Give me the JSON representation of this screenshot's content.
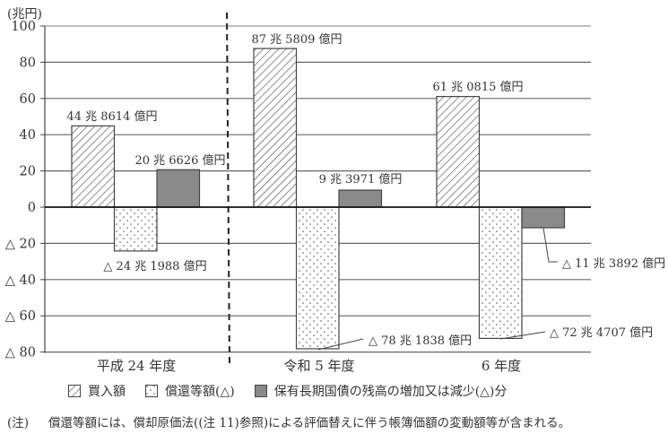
{
  "chart_data": {
    "type": "bar",
    "title": "",
    "ylabel": "(兆円)",
    "xlabel": "",
    "ylim": [
      -80,
      100
    ],
    "yticks": [
      100,
      80,
      60,
      40,
      20,
      0,
      -20,
      -40,
      -60,
      -80
    ],
    "ytick_labels": [
      "100",
      "80",
      "60",
      "40",
      "20",
      "0",
      "△ 20",
      "△ 40",
      "△ 60",
      "△ 80"
    ],
    "grid": true,
    "legend_position": "bottom",
    "categories": [
      "平成 24 年度",
      "令和 5 年度",
      "6 年度"
    ],
    "divider_after_category": 0,
    "series": [
      {
        "name": "買入額",
        "pattern": "hatched",
        "values": [
          44.8614,
          87.5809,
          61.0815
        ],
        "labels": [
          "44 兆 8614 億円",
          "87 兆 5809 億円",
          "61 兆 0815 億円"
        ]
      },
      {
        "name": "償還等額(△)",
        "pattern": "dotted",
        "values": [
          -24.1988,
          -78.1838,
          -72.4707
        ],
        "labels": [
          "△ 24 兆 1988 億円",
          "△ 78 兆 1838 億円",
          "△ 72 兆 4707 億円"
        ]
      },
      {
        "name": "保有長期国債の残高の増加又は減少(△)分",
        "pattern": "solid-gray",
        "color": "#8a8a8a",
        "values": [
          20.6626,
          9.3971,
          -11.3892
        ],
        "labels": [
          "20 兆 6626 億円",
          "9 兆 3971 億円",
          "△ 11 兆 3892 億円"
        ]
      }
    ]
  },
  "legend": {
    "items": [
      {
        "label": "買入額"
      },
      {
        "label": "償還等額(△)"
      },
      {
        "label": "保有長期国債の残高の増加又は減少(△)分"
      }
    ]
  },
  "note": {
    "tag": "(注)",
    "text": "償還等額には、償却原価法((注 11)参照)による評価替えに伴う帳簿価額の変動額等が含まれる。"
  }
}
